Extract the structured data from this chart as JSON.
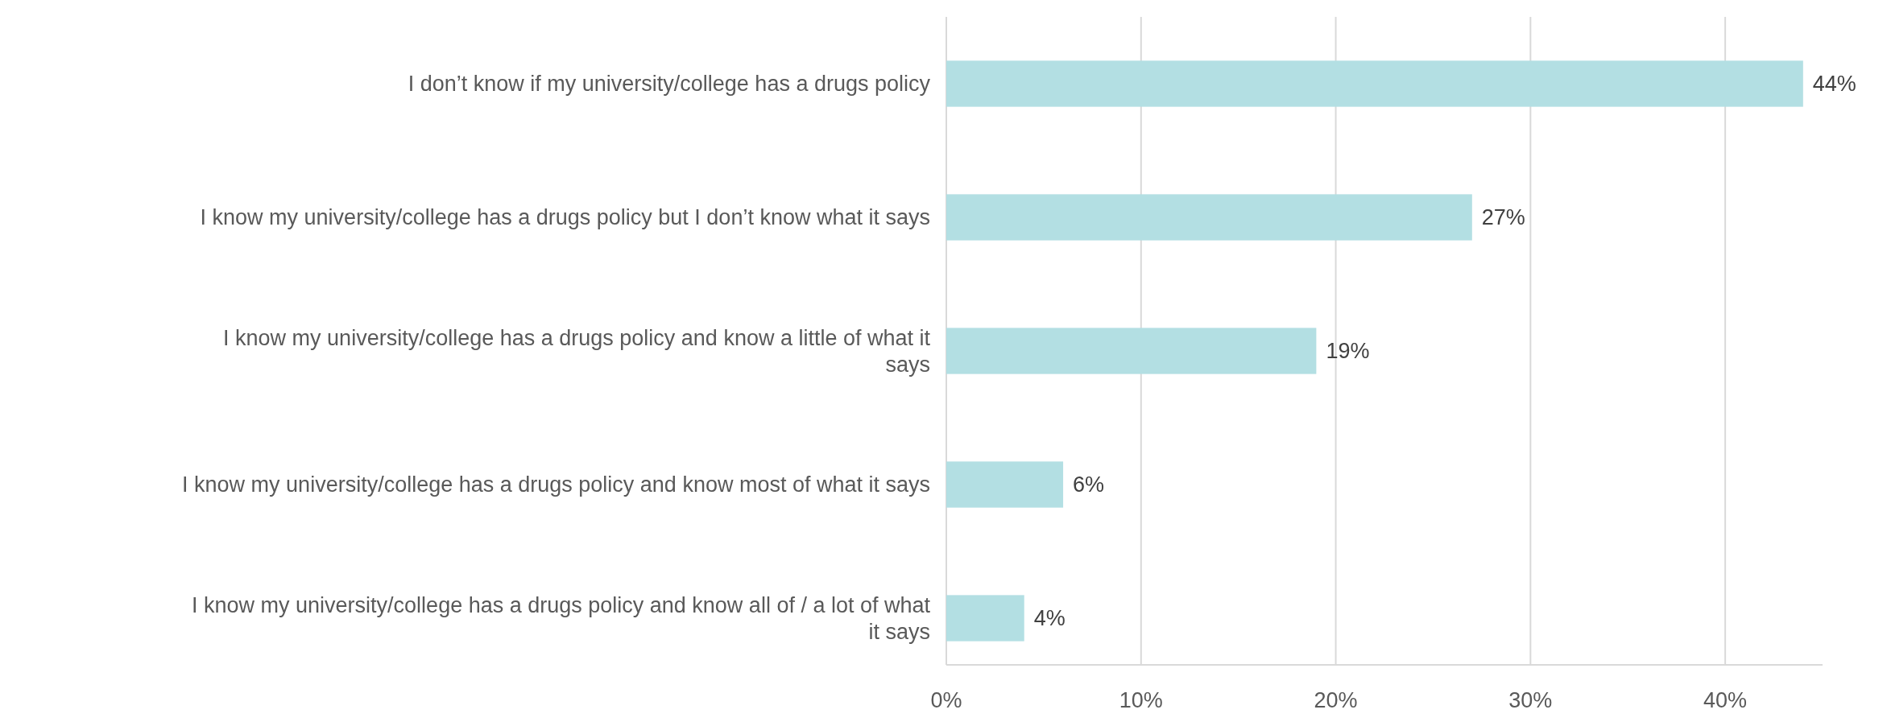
{
  "chart_data": {
    "type": "bar",
    "orientation": "horizontal",
    "categories": [
      "I don’t know if my university/college has a drugs policy",
      "I know my university/college has a drugs policy but I don’t know what it says",
      "I know my university/college has a drugs policy and know a little of what it says",
      "I know my university/college has a drugs policy and know most of what it says",
      "I know my university/college has a drugs policy and know all of / a lot of what it says"
    ],
    "values": [
      44,
      27,
      19,
      6,
      4
    ],
    "value_labels": [
      "44%",
      "27%",
      "19%",
      "6%",
      "4%"
    ],
    "color": "#b3dfe3",
    "xlim": [
      0,
      45
    ],
    "xticks": [
      {
        "value": 0,
        "label": "0%"
      },
      {
        "value": 10,
        "label": "10%"
      },
      {
        "value": 20,
        "label": "20%"
      },
      {
        "value": 30,
        "label": "30%"
      },
      {
        "value": 40,
        "label": "40%"
      }
    ],
    "grid": "x"
  }
}
